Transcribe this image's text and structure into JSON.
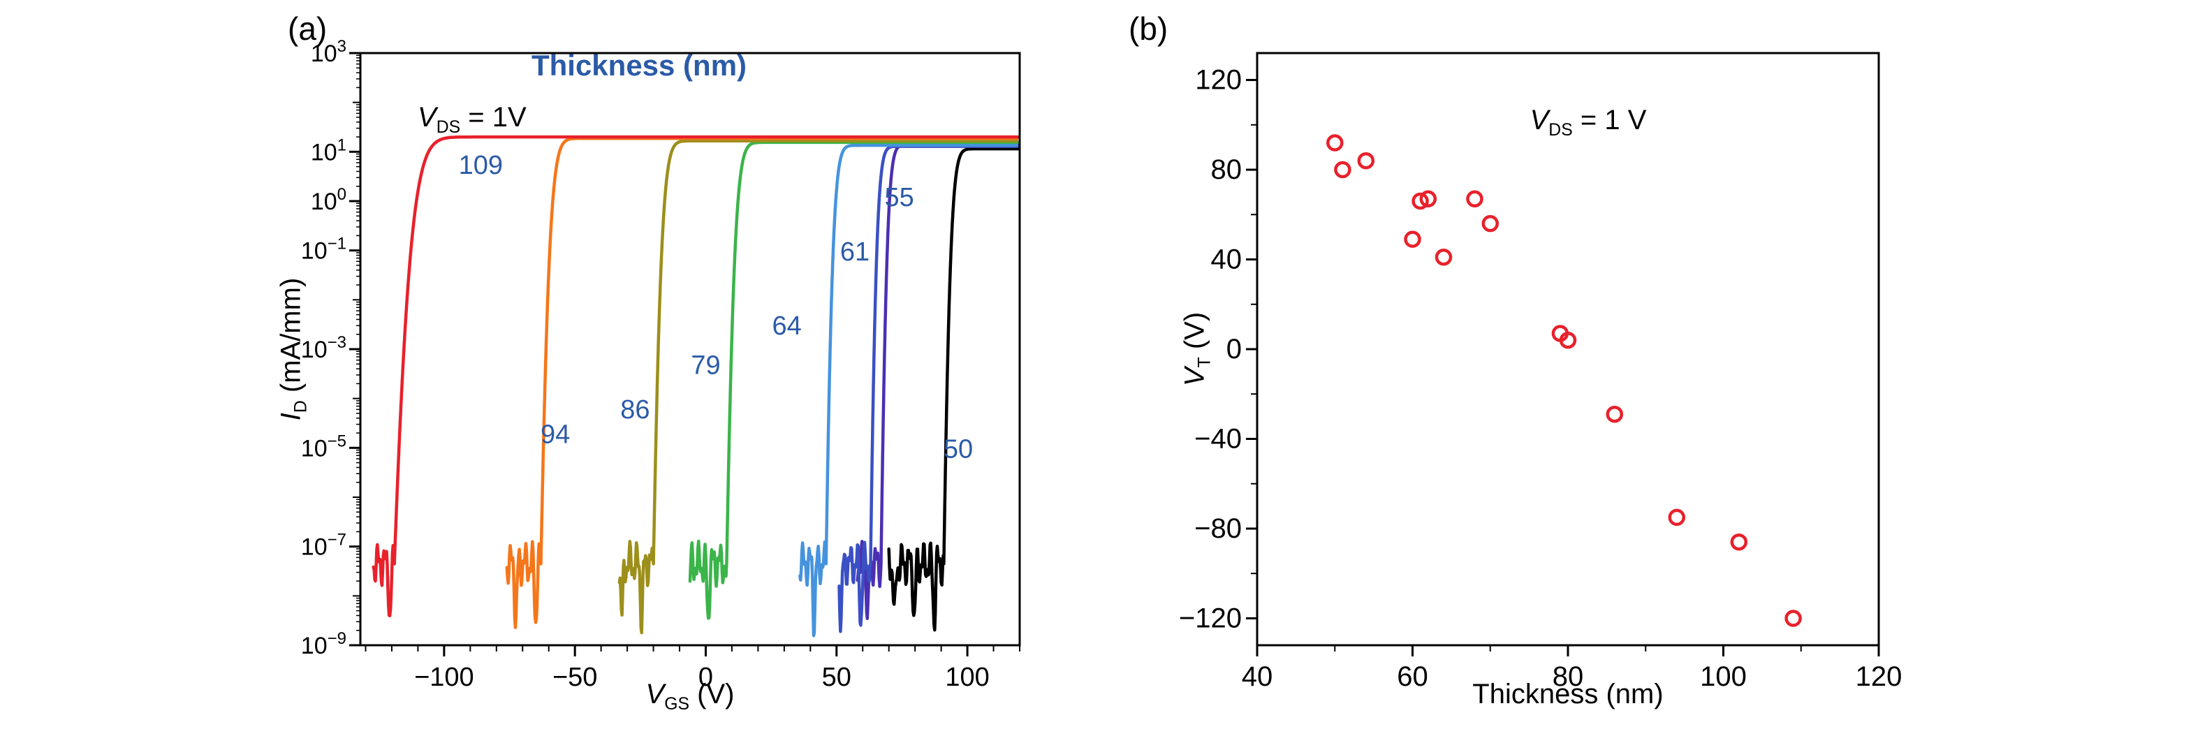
{
  "figure": {
    "background": "#ffffff",
    "accent_blue": "#2b5aa7",
    "axis_color": "#000000"
  },
  "panel_a": {
    "label": "(a)",
    "legend_title": "Thickness (nm)",
    "annotation": {
      "sym": "V",
      "sub": "DS",
      "rest": " = 1V"
    },
    "xlabel": {
      "sym": "V",
      "sub": "GS",
      "rest": " (V)"
    },
    "ylabel": {
      "sym": "I",
      "sub": "D",
      "rest": " (mA/mm)"
    }
  },
  "panel_b": {
    "label": "(b)",
    "annotation": {
      "sym": "V",
      "sub": "DS",
      "rest": " = 1 V"
    },
    "xlabel": "Thickness (nm)",
    "ylabel": {
      "sym": "V",
      "sub": "T",
      "rest": " (V)"
    }
  },
  "chart_data": [
    {
      "type": "line",
      "title": "",
      "xlabel": "V_GS (V)",
      "ylabel": "I_D (mA/mm)",
      "legend_title": "Thickness (nm)",
      "annotation": "V_DS = 1V",
      "x_range": [
        -132,
        120
      ],
      "x_ticks": [
        -100,
        -50,
        0,
        50,
        100
      ],
      "y_scale": "log",
      "y_range_exp": [
        -9,
        3
      ],
      "y_tick_exponents": [
        3,
        1,
        0,
        -1,
        -3,
        -5,
        -7,
        -9
      ],
      "noise_floor_exp": -7.35,
      "series": [
        {
          "name": "109",
          "color": "#e8212b",
          "x_start": -127,
          "vt": -119,
          "tau": 6.0,
          "log_imax": 1.3,
          "label_pos": [
            -86,
            0.55
          ]
        },
        {
          "name": "94",
          "color": "#f5761a",
          "x_start": -76,
          "vt": -63,
          "tau": 3.2,
          "log_imax": 1.27,
          "label_pos": [
            -57.5,
            -4.9
          ]
        },
        {
          "name": "86",
          "color": "#9c8f1b",
          "x_start": -33,
          "vt": -20,
          "tau": 3.0,
          "log_imax": 1.22,
          "label_pos": [
            -27,
            -4.4
          ]
        },
        {
          "name": "79",
          "color": "#3bb44a",
          "x_start": -6,
          "vt": 8,
          "tau": 3.0,
          "log_imax": 1.19,
          "label_pos": [
            0,
            -3.5
          ]
        },
        {
          "name": "64",
          "color": "#4593dd",
          "x_start": 36,
          "vt": 46,
          "tau": 2.5,
          "log_imax": 1.13,
          "label_pos": [
            31,
            -2.7
          ]
        },
        {
          "name": "61",
          "color": "#3a50c4",
          "x_start": 51,
          "vt": 63,
          "tau": 2.2,
          "log_imax": 1.11,
          "label_pos": [
            57,
            -1.2
          ]
        },
        {
          "name": "55",
          "color": "#4c2fb3",
          "x_start": 58,
          "vt": 67,
          "tau": 2.2,
          "log_imax": 1.14,
          "label_pos": [
            74,
            -0.1
          ]
        },
        {
          "name": "50",
          "color": "#000000",
          "x_start": 70,
          "vt": 91,
          "tau": 2.5,
          "log_imax": 1.06,
          "label_pos": [
            96.5,
            -5.2
          ]
        }
      ]
    },
    {
      "type": "scatter",
      "title": "",
      "xlabel": "Thickness (nm)",
      "ylabel": "V_T (V)",
      "annotation": "V_DS = 1 V",
      "x_range": [
        40,
        120
      ],
      "x_ticks": [
        40,
        60,
        80,
        100,
        120
      ],
      "y_range": [
        -132,
        132
      ],
      "y_ticks": [
        120,
        80,
        40,
        0,
        -40,
        -80,
        -120
      ],
      "marker": {
        "shape": "open-circle",
        "color": "#e8212b"
      },
      "points": [
        [
          50,
          92
        ],
        [
          51,
          80
        ],
        [
          54,
          84
        ],
        [
          60,
          49
        ],
        [
          61,
          66
        ],
        [
          62,
          67
        ],
        [
          64,
          41
        ],
        [
          68,
          67
        ],
        [
          70,
          56
        ],
        [
          79,
          7
        ],
        [
          80,
          4
        ],
        [
          86,
          -29
        ],
        [
          94,
          -75
        ],
        [
          102,
          -86
        ],
        [
          109,
          -120
        ]
      ]
    }
  ]
}
